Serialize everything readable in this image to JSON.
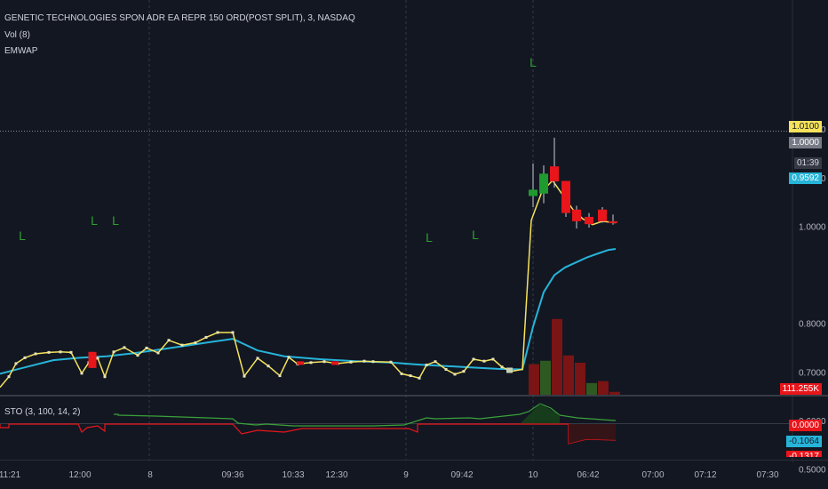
{
  "header": {
    "title": "GENETIC TECHNOLOGIES SPON ADR EA REPR 150 ORD(POST SPLIT), 3, NASDAQ",
    "study_vol": "Vol (8)",
    "study_emwap": "EMWAP",
    "study_sto": "STO (3, 100, 14, 2)"
  },
  "price_labels": {
    "last": "1.0100",
    "ref": "1.0000",
    "countdown": "01:39",
    "emwap": "0.9592",
    "volume": "111.255K",
    "sto_k": "0.0000",
    "sto_d": "-0.1064",
    "sto_cut": "-0.1317"
  },
  "colors": {
    "background": "#131722",
    "price_line": "#f6e35b",
    "emwap_line": "#26b4d9",
    "bull": "#1e9a2e",
    "bear": "#e8151b",
    "vol_bull": "#2e5a22",
    "vol_bear": "#7b1414",
    "axis_text": "#b2b5be",
    "marker": "#2ca02c"
  },
  "chart_data": {
    "type": "line",
    "y_axis": {
      "ticks": [
        "1.2000",
        "1.1000",
        "1.0000",
        "0.8000",
        "0.7000",
        "0.6000",
        "0.5000"
      ],
      "range": [
        0.445,
        1.245
      ]
    },
    "x_axis": {
      "ticks": [
        "11:21",
        "12:00",
        "8",
        "09:36",
        "10:33",
        "12:30",
        "9",
        "09:42",
        "10",
        "06:42",
        "07:00",
        "07:12",
        "07:30"
      ]
    },
    "price_series": [
      [
        0,
        0.669
      ],
      [
        10,
        0.691
      ],
      [
        18,
        0.718
      ],
      [
        28,
        0.73
      ],
      [
        40,
        0.738
      ],
      [
        55,
        0.741
      ],
      [
        68,
        0.742
      ],
      [
        80,
        0.741
      ],
      [
        92,
        0.698
      ],
      [
        100,
        0.72
      ],
      [
        110,
        0.729
      ],
      [
        118,
        0.691
      ],
      [
        128,
        0.742
      ],
      [
        140,
        0.751
      ],
      [
        155,
        0.735
      ],
      [
        165,
        0.75
      ],
      [
        178,
        0.74
      ],
      [
        190,
        0.766
      ],
      [
        205,
        0.756
      ],
      [
        220,
        0.761
      ],
      [
        232,
        0.772
      ],
      [
        245,
        0.782
      ],
      [
        262,
        0.782
      ],
      [
        275,
        0.692
      ],
      [
        290,
        0.729
      ],
      [
        302,
        0.713
      ],
      [
        315,
        0.693
      ],
      [
        325,
        0.731
      ],
      [
        335,
        0.717
      ],
      [
        350,
        0.72
      ],
      [
        365,
        0.722
      ],
      [
        380,
        0.718
      ],
      [
        395,
        0.721
      ],
      [
        410,
        0.723
      ],
      [
        420,
        0.722
      ],
      [
        440,
        0.721
      ],
      [
        452,
        0.697
      ],
      [
        462,
        0.693
      ],
      [
        472,
        0.688
      ],
      [
        480,
        0.715
      ],
      [
        490,
        0.722
      ],
      [
        502,
        0.706
      ],
      [
        512,
        0.696
      ],
      [
        522,
        0.702
      ],
      [
        533,
        0.727
      ],
      [
        545,
        0.723
      ],
      [
        555,
        0.727
      ],
      [
        565,
        0.711
      ],
      [
        575,
        0.702
      ],
      [
        588,
        0.706
      ],
      [
        598,
        1.013
      ],
      [
        610,
        1.072
      ],
      [
        622,
        1.095
      ],
      [
        633,
        1.066
      ],
      [
        645,
        1.035
      ],
      [
        656,
        1.016
      ],
      [
        667,
        1.004
      ],
      [
        678,
        1.011
      ],
      [
        693,
        1.008
      ]
    ],
    "emwap_series": [
      [
        0,
        0.697
      ],
      [
        30,
        0.711
      ],
      [
        60,
        0.725
      ],
      [
        90,
        0.73
      ],
      [
        120,
        0.733
      ],
      [
        150,
        0.739
      ],
      [
        180,
        0.747
      ],
      [
        210,
        0.755
      ],
      [
        240,
        0.763
      ],
      [
        262,
        0.769
      ],
      [
        290,
        0.745
      ],
      [
        320,
        0.733
      ],
      [
        360,
        0.727
      ],
      [
        400,
        0.723
      ],
      [
        440,
        0.72
      ],
      [
        470,
        0.716
      ],
      [
        500,
        0.713
      ],
      [
        530,
        0.71
      ],
      [
        560,
        0.707
      ],
      [
        588,
        0.706
      ],
      [
        600,
        0.794
      ],
      [
        612,
        0.865
      ],
      [
        624,
        0.9
      ],
      [
        636,
        0.916
      ],
      [
        648,
        0.926
      ],
      [
        660,
        0.936
      ],
      [
        672,
        0.944
      ],
      [
        685,
        0.952
      ],
      [
        693,
        0.954
      ]
    ],
    "markers": [
      {
        "x": 25,
        "label": "L"
      },
      {
        "x": 106,
        "label": "L"
      },
      {
        "x": 130,
        "label": "L"
      },
      {
        "x": 483,
        "label": "L"
      },
      {
        "x": 535,
        "label": "L"
      },
      {
        "x": 600,
        "label": "L"
      }
    ],
    "candles": [
      {
        "x": 104,
        "open": 0.742,
        "close": 0.709,
        "high": 0.742,
        "low": 0.709,
        "dir": "down"
      },
      {
        "x": 600,
        "open": 1.063,
        "close": 1.076,
        "high": 1.13,
        "low": 1.04,
        "dir": "up"
      },
      {
        "x": 612,
        "open": 1.068,
        "close": 1.109,
        "high": 1.126,
        "low": 1.048,
        "dir": "up"
      },
      {
        "x": 624,
        "open": 1.124,
        "close": 1.093,
        "high": 1.183,
        "low": 1.08,
        "dir": "down"
      },
      {
        "x": 637,
        "open": 1.094,
        "close": 1.028,
        "high": 1.094,
        "low": 1.02,
        "dir": "down"
      },
      {
        "x": 649,
        "open": 1.035,
        "close": 1.011,
        "high": 1.043,
        "low": 0.996,
        "dir": "down"
      },
      {
        "x": 663,
        "open": 1.02,
        "close": 1.005,
        "high": 1.028,
        "low": 0.998,
        "dir": "down"
      },
      {
        "x": 678,
        "open": 1.035,
        "close": 1.011,
        "high": 1.04,
        "low": 1.008,
        "dir": "down"
      },
      {
        "x": 690,
        "open": 1.011,
        "close": 1.011,
        "high": 1.025,
        "low": 1.004,
        "dir": "down"
      }
    ],
    "volume": [
      {
        "x": 601,
        "height": 0.63,
        "dir": "down"
      },
      {
        "x": 614,
        "height": 0.7,
        "dir": "up"
      },
      {
        "x": 627,
        "height": 1.56,
        "dir": "down"
      },
      {
        "x": 640,
        "height": 0.81,
        "dir": "down"
      },
      {
        "x": 653,
        "height": 0.66,
        "dir": "down"
      },
      {
        "x": 666,
        "height": 0.24,
        "dir": "up"
      },
      {
        "x": 679,
        "height": 0.28,
        "dir": "down"
      },
      {
        "x": 692,
        "height": 0.06,
        "dir": "down"
      }
    ]
  }
}
